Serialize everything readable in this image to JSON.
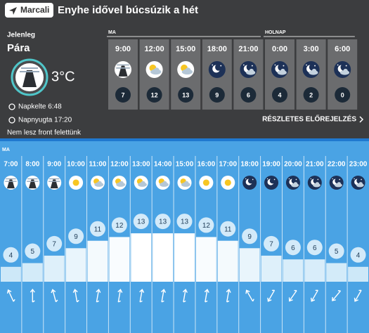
{
  "header": {
    "location": "Marcali",
    "headline": "Enyhe idővel búcsúzik a hét"
  },
  "current": {
    "label": "Jelenleg",
    "condition": "Pára",
    "temperature": "3°C",
    "sunrise": "Napkelte 6:48",
    "sunset": "Napnyugta 17:20",
    "front": "Nem lesz front felettünk"
  },
  "forecast": {
    "sections": [
      {
        "label": "MA",
        "times": [
          "9:00",
          "12:00",
          "15:00",
          "18:00",
          "21:00"
        ],
        "temps": [
          7,
          12,
          13,
          9,
          6
        ]
      },
      {
        "label": "HOLNAP",
        "times": [
          "0:00",
          "3:00",
          "6:00"
        ],
        "temps": [
          4,
          2,
          0
        ]
      }
    ],
    "link": "RÉSZLETES ELŐREJELZÉS"
  },
  "hourly": {
    "label": "MA",
    "times": [
      "7:00",
      "8:00",
      "9:00",
      "10:00",
      "11:00",
      "12:00",
      "13:00",
      "14:00",
      "15:00",
      "16:00",
      "17:00",
      "18:00",
      "19:00",
      "20:00",
      "21:00",
      "22:00",
      "23:00"
    ],
    "temps": [
      4,
      5,
      7,
      9,
      11,
      12,
      13,
      13,
      13,
      12,
      11,
      9,
      7,
      6,
      6,
      5,
      4
    ]
  }
}
